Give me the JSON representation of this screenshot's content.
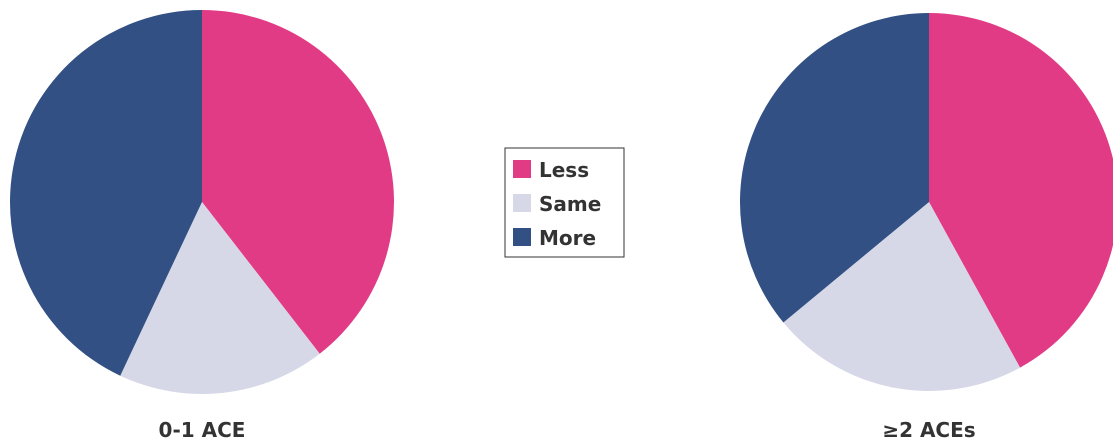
{
  "chart_data": [
    {
      "type": "pie",
      "title": "0-1 ACE",
      "categories": [
        "Less",
        "Same",
        "More"
      ],
      "values": [
        39.5,
        17.5,
        43.0
      ],
      "colors": [
        "#e23b86",
        "#d6d8e7",
        "#325083"
      ],
      "legend": "center"
    },
    {
      "type": "pie",
      "title": "≥2 ACEs",
      "categories": [
        "Less",
        "Same",
        "More"
      ],
      "values": [
        42.0,
        22.0,
        36.0
      ],
      "colors": [
        "#e23b86",
        "#d6d8e7",
        "#325083"
      ],
      "legend": "center"
    }
  ],
  "legend": {
    "items": [
      {
        "label": "Less",
        "color": "#e23b86"
      },
      {
        "label": "Same",
        "color": "#d6d8e7"
      },
      {
        "label": "More",
        "color": "#325083"
      }
    ]
  }
}
